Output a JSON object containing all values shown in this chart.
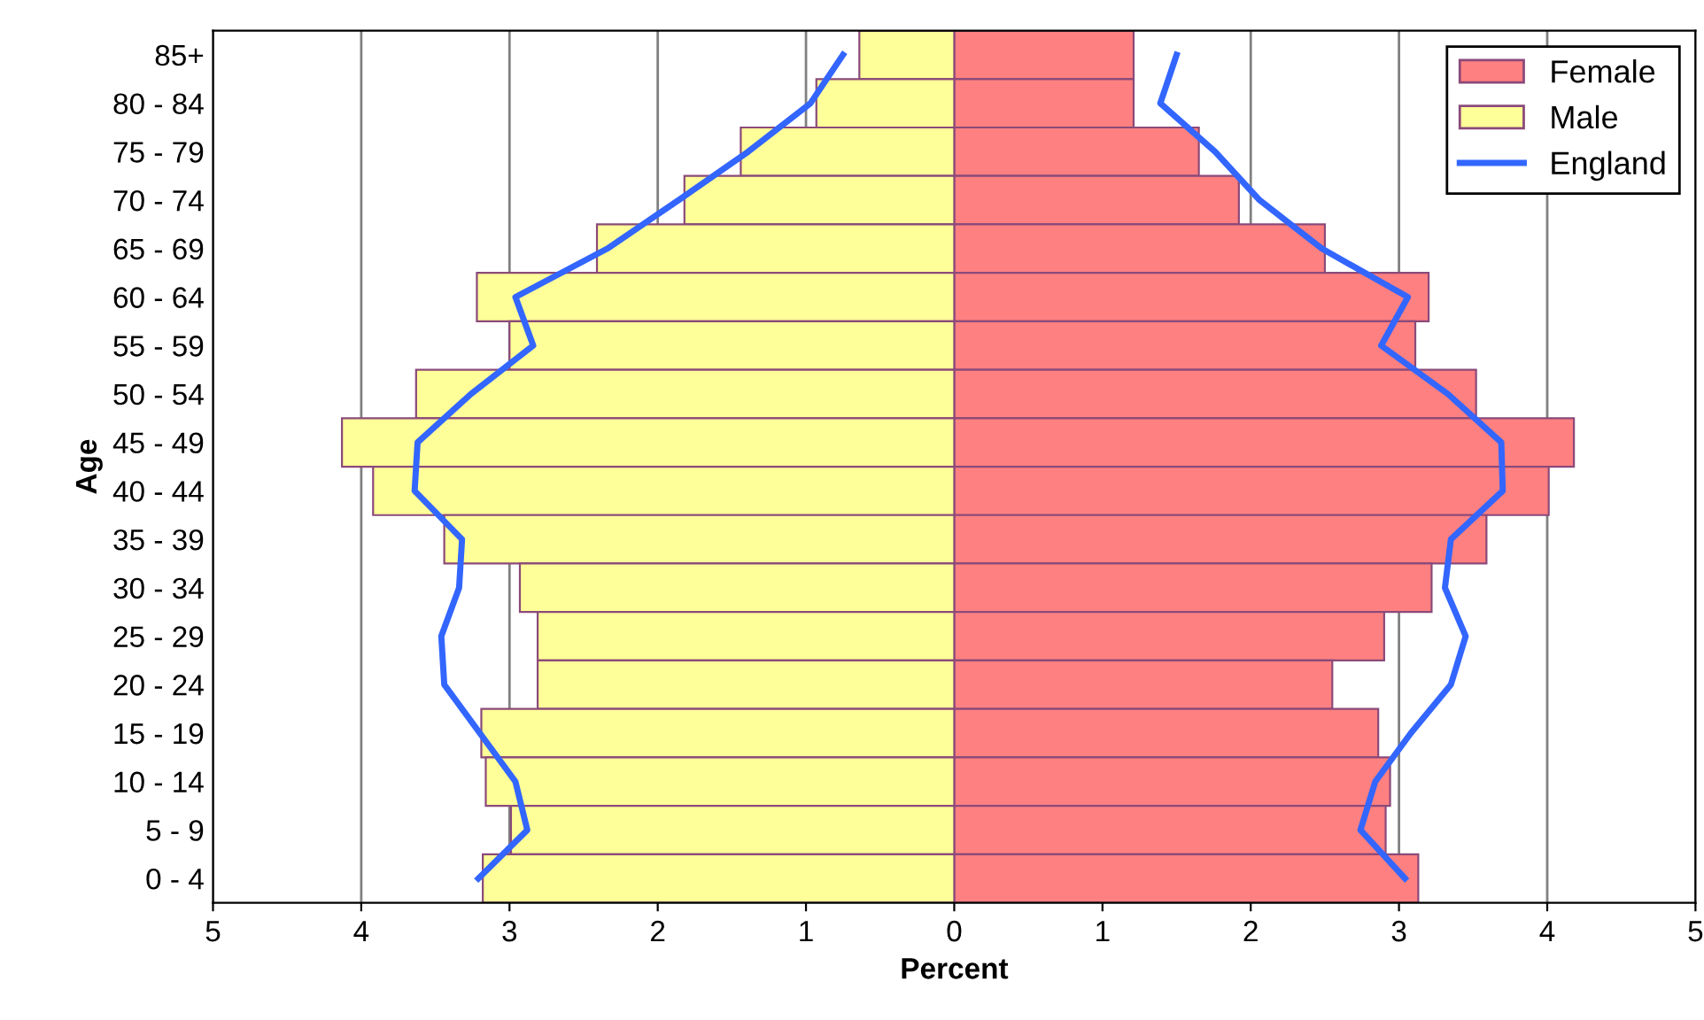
{
  "chart_data": {
    "type": "bar",
    "orientation": "horizontal",
    "xlabel": "Percent",
    "ylabel": "Age",
    "categories": [
      "85+",
      "80 - 84",
      "75 - 79",
      "70 - 74",
      "65 - 69",
      "60 - 64",
      "55 - 59",
      "50 - 54",
      "45 - 49",
      "40 - 44",
      "35 - 39",
      "30 - 34",
      "25 - 29",
      "20 - 24",
      "15 - 19",
      "10 - 14",
      "5 - 9",
      "0 - 4"
    ],
    "series": [
      {
        "name": "Female",
        "color": "#ff8080",
        "values": [
          1.21,
          1.21,
          1.65,
          1.92,
          2.5,
          3.2,
          3.11,
          3.52,
          4.18,
          4.01,
          3.59,
          3.22,
          2.9,
          2.55,
          2.86,
          2.94,
          2.91,
          3.13
        ]
      },
      {
        "name": "Male",
        "color": "#ffff99",
        "values": [
          -0.64,
          -0.93,
          -1.44,
          -1.82,
          -2.41,
          -3.22,
          -3.0,
          -3.63,
          -4.13,
          -3.92,
          -3.44,
          -2.93,
          -2.81,
          -2.81,
          -3.19,
          -3.16,
          -2.99,
          -3.18
        ]
      },
      {
        "name": "England",
        "type": "line",
        "color": "#3366ff",
        "values": [
          1.5,
          1.39,
          1.76,
          2.06,
          2.48,
          3.06,
          2.88,
          3.33,
          3.69,
          3.7,
          3.35,
          3.31,
          3.45,
          3.35,
          3.08,
          2.84,
          2.74,
          3.04
        ]
      },
      {
        "type": "line",
        "color": "#3366ff",
        "values": [
          -0.75,
          -0.97,
          -1.39,
          -1.86,
          -2.34,
          -2.96,
          -2.84,
          -3.26,
          -3.62,
          -3.64,
          -3.32,
          -3.34,
          -3.46,
          -3.44,
          -3.2,
          -2.96,
          -2.88,
          -3.21
        ]
      }
    ],
    "xlim": [
      -5,
      5
    ],
    "xticks": [
      {
        "value": -5,
        "label": "5"
      },
      {
        "value": -4,
        "label": "4"
      },
      {
        "value": -3,
        "label": "3"
      },
      {
        "value": -2,
        "label": "2"
      },
      {
        "value": -1,
        "label": "1"
      },
      0,
      1,
      2,
      3,
      4,
      5
    ],
    "stacked": true,
    "grid": "x",
    "legend": "top right",
    "line_style": "solid",
    "marker": "none"
  }
}
